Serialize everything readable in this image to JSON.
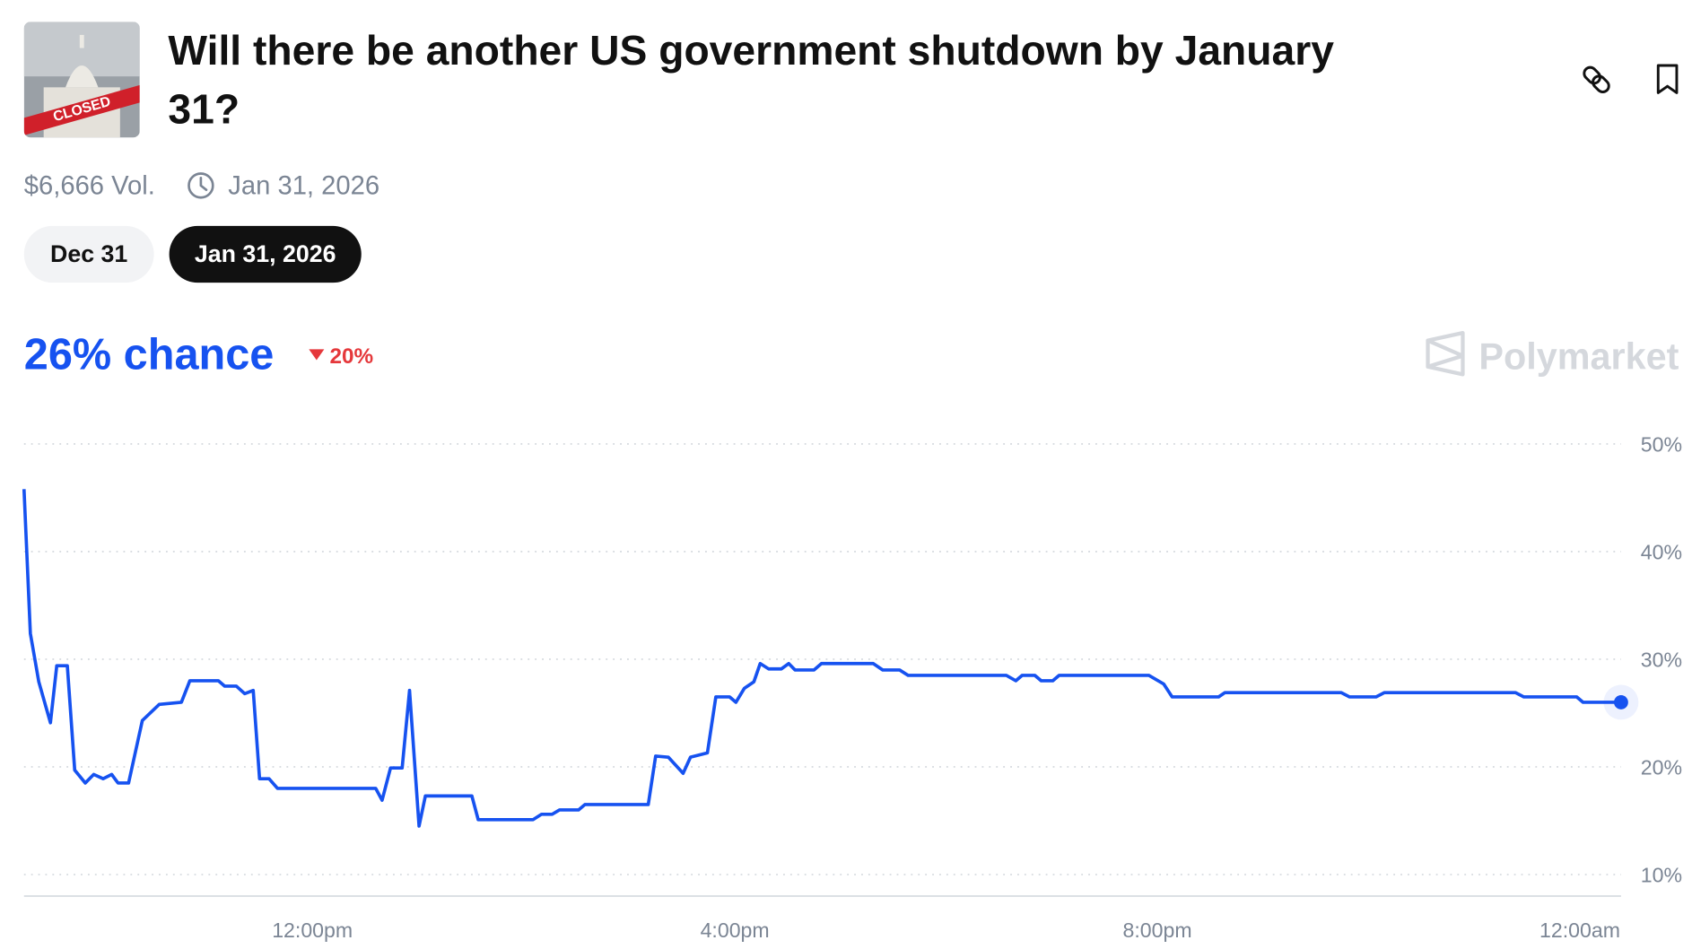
{
  "header": {
    "image_text": "CLOSED",
    "title": "Will there be another US government shutdown by January 31?"
  },
  "meta": {
    "volume": "$6,666 Vol.",
    "date": "Jan 31, 2026"
  },
  "tabs": [
    "Dec 31",
    "Jan 31, 2026"
  ],
  "chance": "26% chance",
  "change": "20%",
  "brand": "Polymarket",
  "chart_data": {
    "type": "line",
    "x": [
      9.27,
      9.33,
      9.41,
      9.52,
      9.58,
      9.68,
      9.75,
      9.85,
      9.93,
      10.02,
      10.1,
      10.16,
      10.26,
      10.39,
      10.55,
      10.76,
      10.84,
      11.11,
      11.17,
      11.28,
      11.36,
      11.44,
      11.5,
      11.59,
      11.67,
      12.6,
      12.66,
      12.74,
      12.85,
      12.92,
      13.01,
      13.07,
      13.51,
      13.57,
      14.09,
      14.17,
      14.27,
      14.34,
      14.52,
      14.58,
      15.18,
      15.25,
      15.37,
      15.51,
      15.58,
      15.74,
      15.82,
      15.95,
      16.01,
      16.09,
      16.18,
      16.24,
      16.32,
      16.44,
      16.51,
      16.57,
      16.75,
      16.82,
      17.31,
      17.4,
      17.56,
      17.64,
      18.57,
      18.66,
      18.72,
      18.84,
      18.9,
      19.01,
      19.07,
      19.92,
      20.06,
      20.14,
      20.58,
      20.64,
      21.74,
      21.82,
      22.07,
      22.15,
      23.39,
      23.47,
      23.97,
      24.03,
      24.39
    ],
    "series": [
      {
        "color": "#1652f0",
        "values": [
          45.8,
          32.4,
          27.9,
          24.1,
          29.4,
          29.4,
          19.7,
          18.5,
          19.3,
          18.9,
          19.3,
          18.5,
          18.5,
          24.3,
          25.8,
          26.0,
          28.0,
          28.0,
          27.5,
          27.5,
          26.8,
          27.1,
          18.9,
          18.9,
          18.0,
          18.0,
          16.9,
          19.9,
          19.9,
          27.1,
          14.5,
          17.3,
          17.3,
          15.1,
          15.1,
          15.6,
          15.6,
          16.0,
          16.0,
          16.5,
          16.5,
          21.0,
          20.9,
          19.4,
          20.9,
          21.3,
          26.5,
          26.5,
          26.0,
          27.3,
          27.9,
          29.6,
          29.1,
          29.1,
          29.6,
          29.0,
          29.0,
          29.6,
          29.6,
          29.0,
          29.0,
          28.5,
          28.5,
          28.0,
          28.5,
          28.5,
          28.0,
          28.0,
          28.5,
          28.5,
          27.7,
          26.5,
          26.5,
          26.9,
          26.9,
          26.5,
          26.5,
          26.9,
          26.9,
          26.5,
          26.5,
          26.0,
          26.0
        ]
      }
    ],
    "xlim": [
      9.27,
      24.39
    ],
    "xticks": [
      {
        "value": 12,
        "label": "12:00pm"
      },
      {
        "value": 16,
        "label": "4:00pm"
      },
      {
        "value": 20,
        "label": "8:00pm"
      },
      {
        "value": 24,
        "label": "12:00am"
      }
    ],
    "ylim": [
      8,
      52
    ],
    "yticks": [
      {
        "value": 10,
        "label": "10%"
      },
      {
        "value": 20,
        "label": "20%"
      },
      {
        "value": 30,
        "label": "30%"
      },
      {
        "value": 40,
        "label": "40%"
      },
      {
        "value": 50,
        "label": "50%"
      }
    ],
    "grid": true
  }
}
